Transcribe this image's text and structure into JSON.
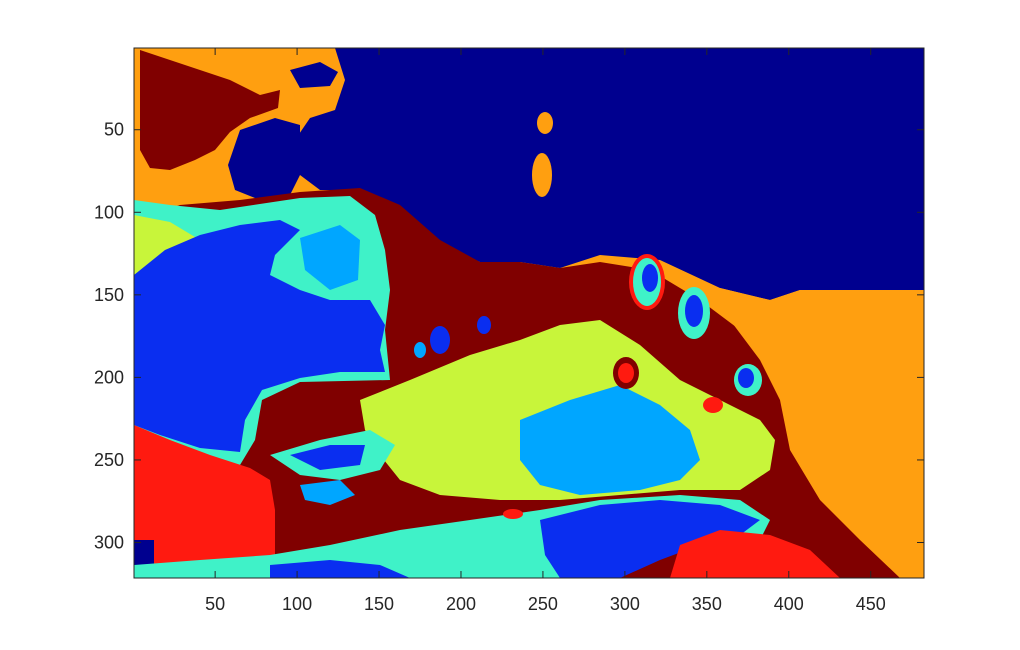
{
  "figure": {
    "colormap": "jet",
    "palette": {
      "dark_blue": "#00008f",
      "blue": "#0a2ef0",
      "light_blue": "#00a6ff",
      "cyan": "#3ff2c8",
      "yellow_green": "#c8f53a",
      "orange": "#ff9f10",
      "red": "#ff1a10",
      "dark_red": "#800000"
    },
    "axes": {
      "x_ticks": [
        "50",
        "100",
        "150",
        "200",
        "250",
        "300",
        "350",
        "400",
        "450"
      ],
      "y_ticks": [
        "50",
        "100",
        "150",
        "200",
        "250",
        "300"
      ],
      "x_tick_values": [
        50,
        100,
        150,
        200,
        250,
        300,
        350,
        400,
        450
      ],
      "y_tick_values": [
        50,
        100,
        150,
        200,
        250,
        300
      ],
      "xlim": [
        0.5,
        482.5
      ],
      "ylim": [
        0.5,
        321.5
      ],
      "y_direction": "reversed"
    }
  }
}
